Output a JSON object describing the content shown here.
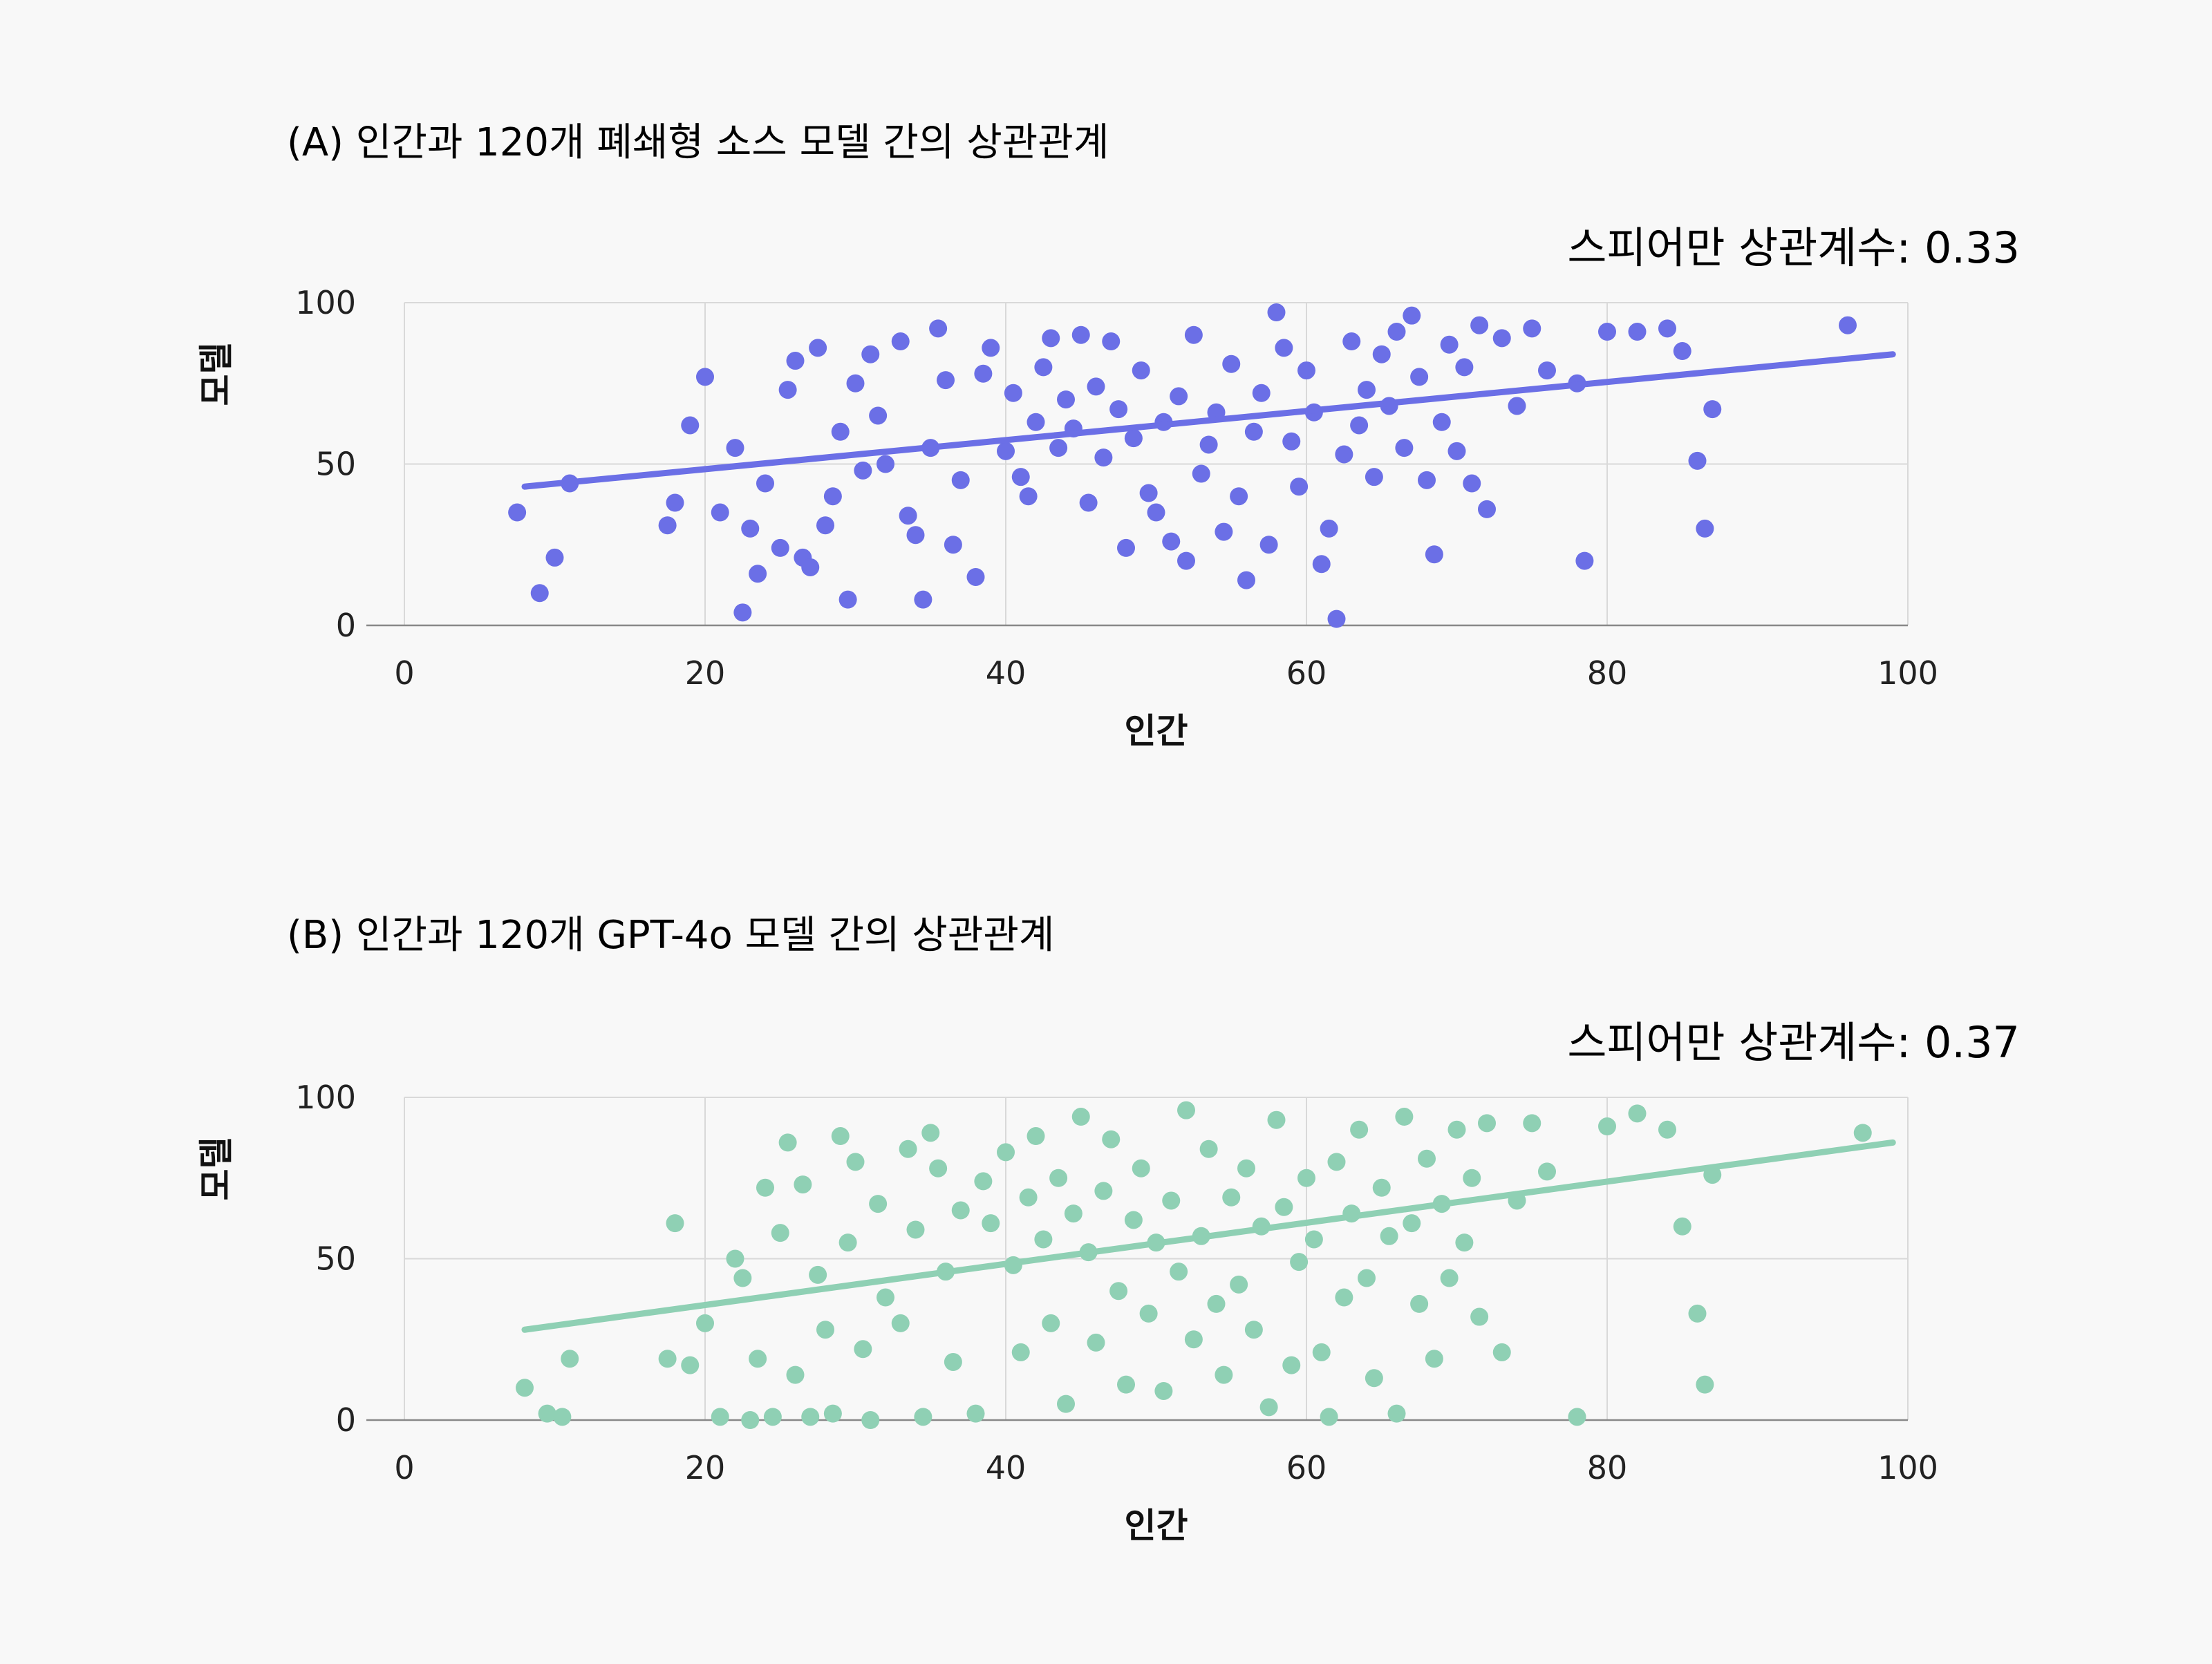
{
  "colors": {
    "series_a": "#6b6fe6",
    "series_b": "#8fd0b4",
    "background": "#f8f8f8"
  },
  "chart_data": [
    {
      "type": "scatter",
      "title": "(A) 인간과 120개 폐쇄형 소스 모델 간의 상관관계",
      "annotation": "스피어만 상관계수: 0.33",
      "xlabel": "인간",
      "ylabel": "모델",
      "xlim": [
        0,
        100
      ],
      "ylim": [
        0,
        100
      ],
      "xticks": [
        0,
        20,
        40,
        60,
        80,
        100
      ],
      "yticks": [
        0,
        50,
        100
      ],
      "grid": true,
      "color": "#6b6fe6",
      "trendline": {
        "x": [
          8,
          99
        ],
        "y": [
          43,
          84
        ]
      },
      "points": [
        [
          7.5,
          35
        ],
        [
          9,
          10
        ],
        [
          10,
          21
        ],
        [
          11,
          44
        ],
        [
          17.5,
          31
        ],
        [
          18,
          38
        ],
        [
          19,
          62
        ],
        [
          20,
          77
        ],
        [
          21,
          35
        ],
        [
          22,
          55
        ],
        [
          22.5,
          4
        ],
        [
          23,
          30
        ],
        [
          23.5,
          16
        ],
        [
          24,
          44
        ],
        [
          25,
          24
        ],
        [
          25.5,
          73
        ],
        [
          26,
          82
        ],
        [
          26.5,
          21
        ],
        [
          27,
          18
        ],
        [
          27.5,
          86
        ],
        [
          28,
          31
        ],
        [
          28.5,
          40
        ],
        [
          29,
          60
        ],
        [
          29.5,
          8
        ],
        [
          30,
          75
        ],
        [
          30.5,
          48
        ],
        [
          31,
          84
        ],
        [
          31.5,
          65
        ],
        [
          32,
          50
        ],
        [
          33,
          88
        ],
        [
          33.5,
          34
        ],
        [
          34,
          28
        ],
        [
          34.5,
          8
        ],
        [
          35,
          55
        ],
        [
          35.5,
          92
        ],
        [
          36,
          76
        ],
        [
          36.5,
          25
        ],
        [
          37,
          45
        ],
        [
          38,
          15
        ],
        [
          38.5,
          78
        ],
        [
          39,
          86
        ],
        [
          40,
          54
        ],
        [
          40.5,
          72
        ],
        [
          41,
          46
        ],
        [
          41.5,
          40
        ],
        [
          42,
          63
        ],
        [
          42.5,
          80
        ],
        [
          43,
          89
        ],
        [
          43.5,
          55
        ],
        [
          44,
          70
        ],
        [
          44.5,
          61
        ],
        [
          45,
          90
        ],
        [
          45.5,
          38
        ],
        [
          46,
          74
        ],
        [
          46.5,
          52
        ],
        [
          47,
          88
        ],
        [
          47.5,
          67
        ],
        [
          48,
          24
        ],
        [
          48.5,
          58
        ],
        [
          49,
          79
        ],
        [
          49.5,
          41
        ],
        [
          50,
          35
        ],
        [
          50.5,
          63
        ],
        [
          51,
          26
        ],
        [
          51.5,
          71
        ],
        [
          52,
          20
        ],
        [
          52.5,
          90
        ],
        [
          53,
          47
        ],
        [
          53.5,
          56
        ],
        [
          54,
          66
        ],
        [
          54.5,
          29
        ],
        [
          55,
          81
        ],
        [
          55.5,
          40
        ],
        [
          56,
          14
        ],
        [
          56.5,
          60
        ],
        [
          57,
          72
        ],
        [
          57.5,
          25
        ],
        [
          58,
          97
        ],
        [
          58.5,
          86
        ],
        [
          59,
          57
        ],
        [
          59.5,
          43
        ],
        [
          60,
          79
        ],
        [
          60.5,
          66
        ],
        [
          61,
          19
        ],
        [
          61.5,
          30
        ],
        [
          62,
          2
        ],
        [
          62.5,
          53
        ],
        [
          63,
          88
        ],
        [
          63.5,
          62
        ],
        [
          64,
          73
        ],
        [
          64.5,
          46
        ],
        [
          65,
          84
        ],
        [
          65.5,
          68
        ],
        [
          66,
          91
        ],
        [
          66.5,
          55
        ],
        [
          67,
          96
        ],
        [
          67.5,
          77
        ],
        [
          68,
          45
        ],
        [
          68.5,
          22
        ],
        [
          69,
          63
        ],
        [
          69.5,
          87
        ],
        [
          70,
          54
        ],
        [
          70.5,
          80
        ],
        [
          71,
          44
        ],
        [
          71.5,
          93
        ],
        [
          72,
          36
        ],
        [
          73,
          89
        ],
        [
          74,
          68
        ],
        [
          75,
          92
        ],
        [
          76,
          79
        ],
        [
          78,
          75
        ],
        [
          78.5,
          20
        ],
        [
          80,
          91
        ],
        [
          82,
          91
        ],
        [
          84,
          92
        ],
        [
          85,
          85
        ],
        [
          86,
          51
        ],
        [
          86.5,
          30
        ],
        [
          87,
          67
        ],
        [
          96,
          93
        ]
      ]
    },
    {
      "type": "scatter",
      "title": "(B) 인간과 120개 GPT-4o 모델 간의 상관관계",
      "annotation": "스피어만 상관계수: 0.37",
      "xlabel": "인간",
      "ylabel": "모델",
      "xlim": [
        0,
        100
      ],
      "ylim": [
        0,
        100
      ],
      "xticks": [
        0,
        20,
        40,
        60,
        80,
        100
      ],
      "yticks": [
        0,
        50,
        100
      ],
      "grid": true,
      "color": "#8fd0b4",
      "trendline": {
        "x": [
          8,
          99
        ],
        "y": [
          28,
          86
        ]
      },
      "points": [
        [
          8,
          10
        ],
        [
          9.5,
          2
        ],
        [
          10.5,
          1
        ],
        [
          11,
          19
        ],
        [
          17.5,
          19
        ],
        [
          18,
          61
        ],
        [
          19,
          17
        ],
        [
          20,
          30
        ],
        [
          21,
          1
        ],
        [
          22,
          50
        ],
        [
          22.5,
          44
        ],
        [
          23,
          0
        ],
        [
          23.5,
          19
        ],
        [
          24,
          72
        ],
        [
          24.5,
          1
        ],
        [
          25,
          58
        ],
        [
          25.5,
          86
        ],
        [
          26,
          14
        ],
        [
          26.5,
          73
        ],
        [
          27,
          1
        ],
        [
          27.5,
          45
        ],
        [
          28,
          28
        ],
        [
          28.5,
          2
        ],
        [
          29,
          88
        ],
        [
          29.5,
          55
        ],
        [
          30,
          80
        ],
        [
          30.5,
          22
        ],
        [
          31,
          0
        ],
        [
          31.5,
          67
        ],
        [
          32,
          38
        ],
        [
          33,
          30
        ],
        [
          33.5,
          84
        ],
        [
          34,
          59
        ],
        [
          34.5,
          1
        ],
        [
          35,
          89
        ],
        [
          35.5,
          78
        ],
        [
          36,
          46
        ],
        [
          36.5,
          18
        ],
        [
          37,
          65
        ],
        [
          38,
          2
        ],
        [
          38.5,
          74
        ],
        [
          39,
          61
        ],
        [
          40,
          83
        ],
        [
          40.5,
          48
        ],
        [
          41,
          21
        ],
        [
          41.5,
          69
        ],
        [
          42,
          88
        ],
        [
          42.5,
          56
        ],
        [
          43,
          30
        ],
        [
          43.5,
          75
        ],
        [
          44,
          5
        ],
        [
          44.5,
          64
        ],
        [
          45,
          94
        ],
        [
          45.5,
          52
        ],
        [
          46,
          24
        ],
        [
          46.5,
          71
        ],
        [
          47,
          87
        ],
        [
          47.5,
          40
        ],
        [
          48,
          11
        ],
        [
          48.5,
          62
        ],
        [
          49,
          78
        ],
        [
          49.5,
          33
        ],
        [
          50,
          55
        ],
        [
          50.5,
          9
        ],
        [
          51,
          68
        ],
        [
          51.5,
          46
        ],
        [
          52,
          96
        ],
        [
          52.5,
          25
        ],
        [
          53,
          57
        ],
        [
          53.5,
          84
        ],
        [
          54,
          36
        ],
        [
          54.5,
          14
        ],
        [
          55,
          69
        ],
        [
          55.5,
          42
        ],
        [
          56,
          78
        ],
        [
          56.5,
          28
        ],
        [
          57,
          60
        ],
        [
          57.5,
          4
        ],
        [
          58,
          93
        ],
        [
          58.5,
          66
        ],
        [
          59,
          17
        ],
        [
          59.5,
          49
        ],
        [
          60,
          75
        ],
        [
          60.5,
          56
        ],
        [
          61,
          21
        ],
        [
          61.5,
          1
        ],
        [
          62,
          80
        ],
        [
          62.5,
          38
        ],
        [
          63,
          64
        ],
        [
          63.5,
          90
        ],
        [
          64,
          44
        ],
        [
          64.5,
          13
        ],
        [
          65,
          72
        ],
        [
          65.5,
          57
        ],
        [
          66,
          2
        ],
        [
          66.5,
          94
        ],
        [
          67,
          61
        ],
        [
          67.5,
          36
        ],
        [
          68,
          81
        ],
        [
          68.5,
          19
        ],
        [
          69,
          67
        ],
        [
          69.5,
          44
        ],
        [
          70,
          90
        ],
        [
          70.5,
          55
        ],
        [
          71,
          75
        ],
        [
          71.5,
          32
        ],
        [
          72,
          92
        ],
        [
          73,
          21
        ],
        [
          74,
          68
        ],
        [
          75,
          92
        ],
        [
          76,
          77
        ],
        [
          78,
          1
        ],
        [
          80,
          91
        ],
        [
          82,
          95
        ],
        [
          84,
          90
        ],
        [
          85,
          60
        ],
        [
          86,
          33
        ],
        [
          86.5,
          11
        ],
        [
          87,
          76
        ],
        [
          97,
          89
        ]
      ]
    }
  ]
}
